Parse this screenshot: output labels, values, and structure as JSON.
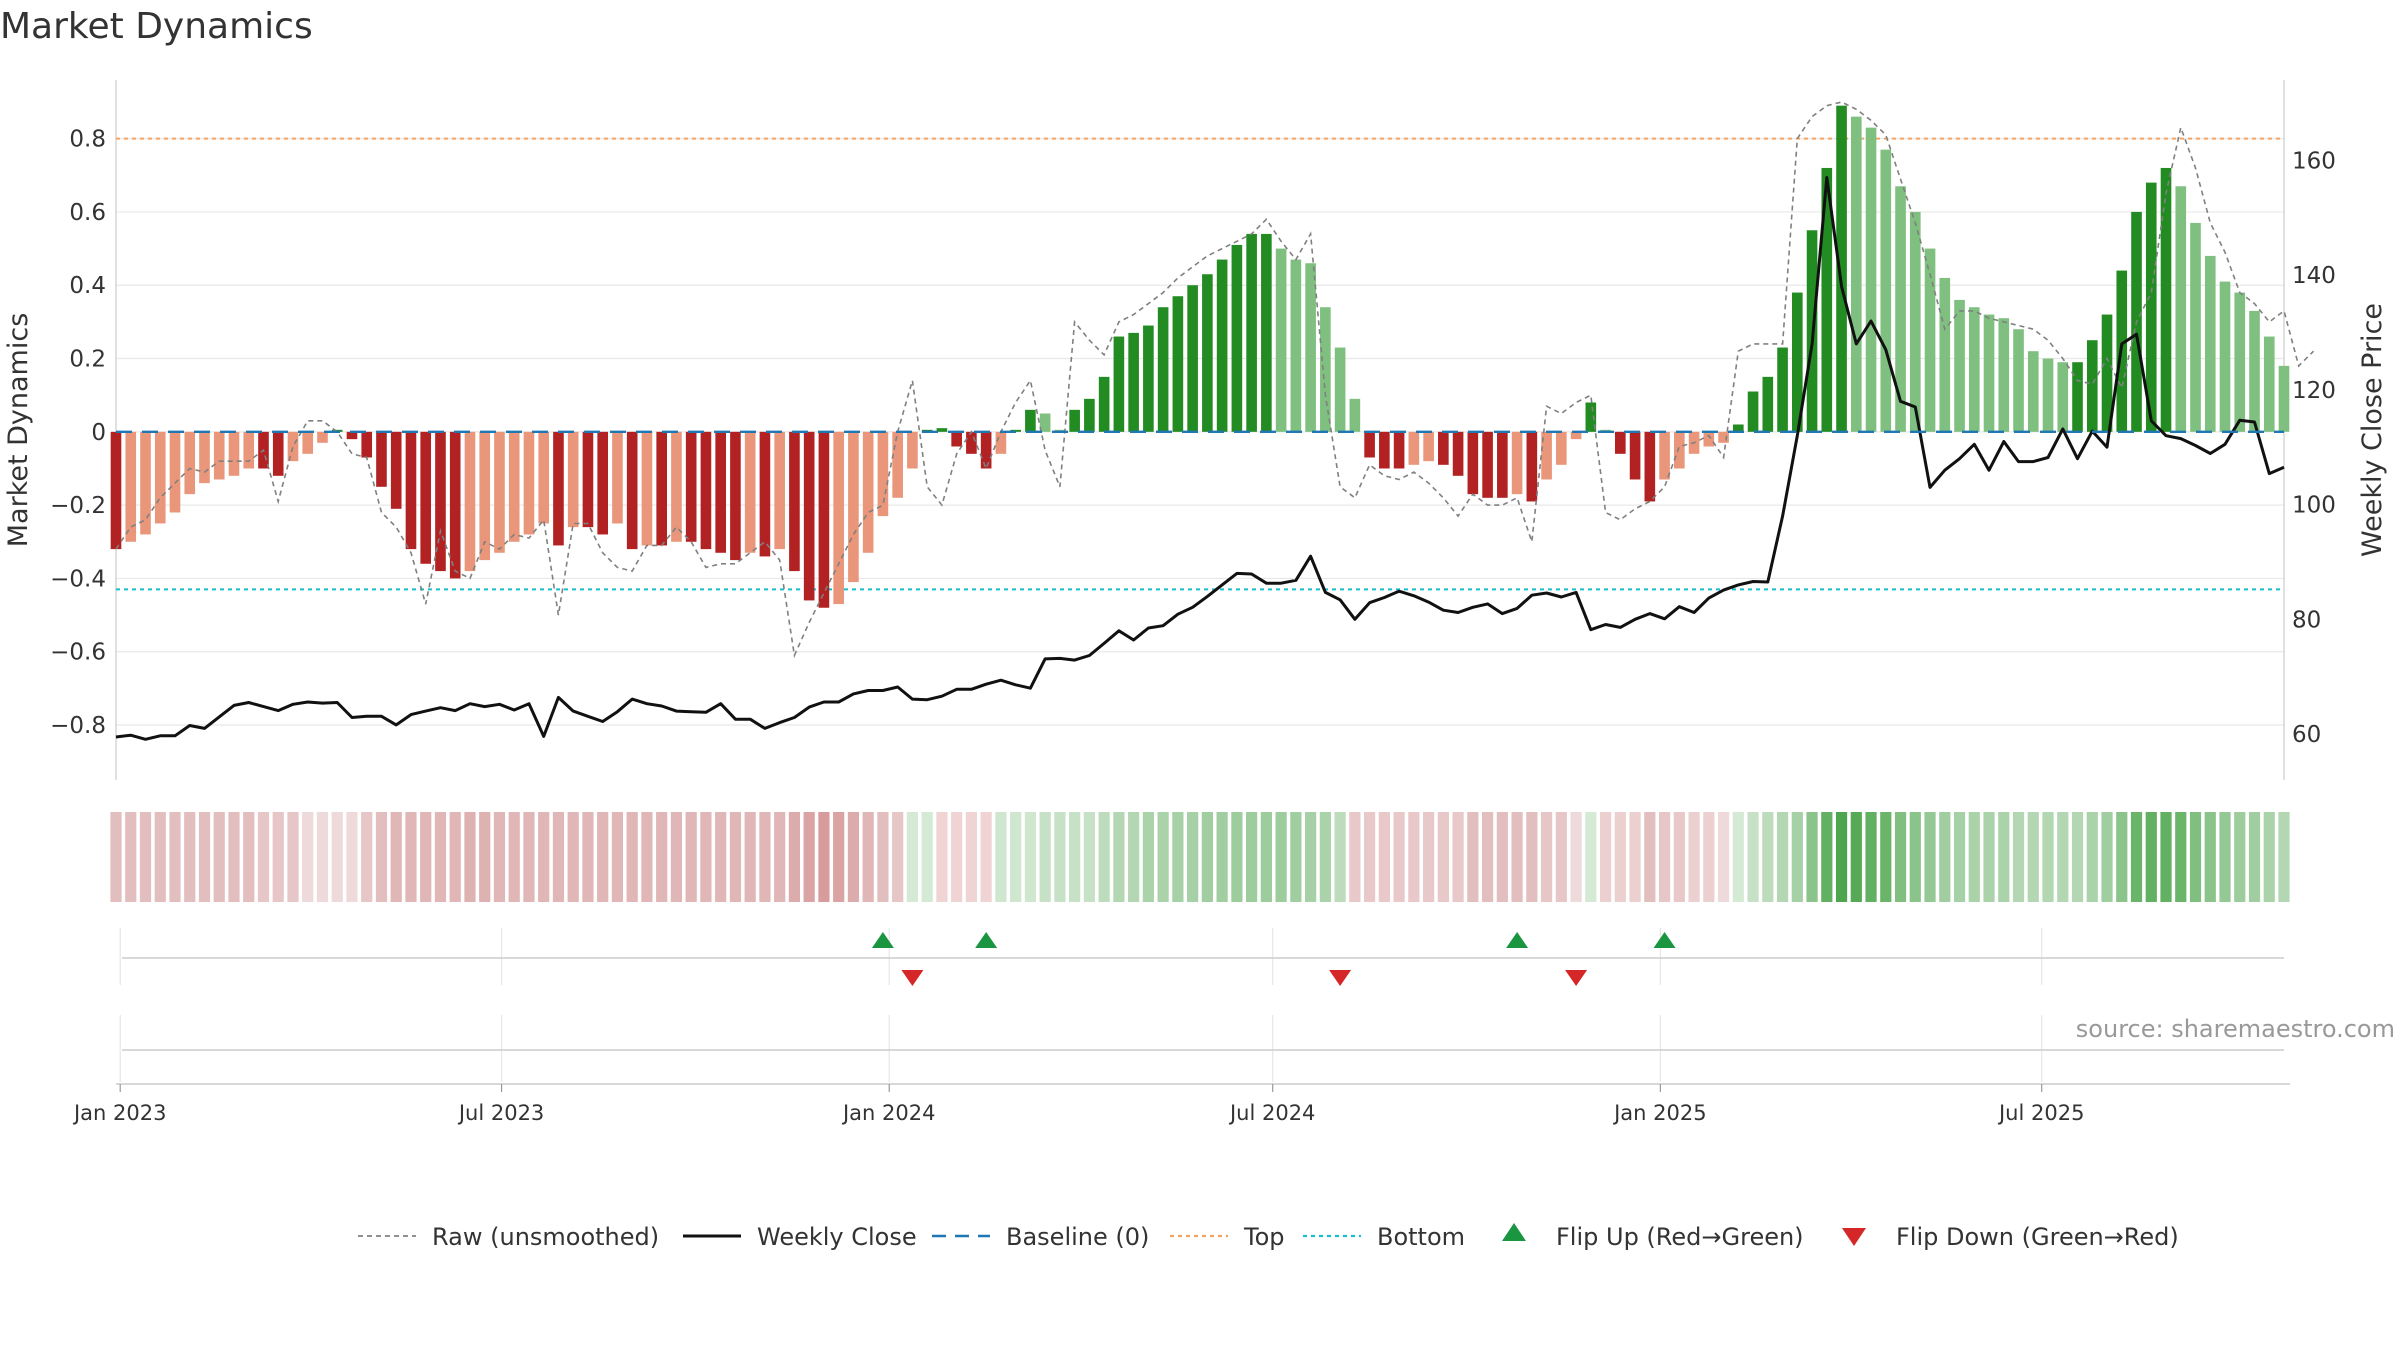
{
  "chart_data": {
    "type": "bar",
    "title": "Market Dynamics",
    "ylabel": "Market Dynamics",
    "y2label": "Weekly Close Price",
    "ylim": [
      -0.95,
      0.96
    ],
    "y2lim": [
      52,
      174
    ],
    "yticks": [
      -0.8,
      -0.6,
      -0.4,
      -0.2,
      0,
      0.2,
      0.4,
      0.6,
      0.8
    ],
    "ytick_labels": [
      "−0.8",
      "−0.6",
      "−0.4",
      "−0.2",
      "0",
      "0.2",
      "0.4",
      "0.6",
      "0.8"
    ],
    "y2ticks": [
      60,
      80,
      100,
      120,
      140,
      160
    ],
    "y2tick_labels": [
      "60",
      "80",
      "100",
      "120",
      "140",
      "160"
    ],
    "x_range": [
      "2022-12-30",
      "2025-10-24"
    ],
    "x_ticks": [
      "2023-01-01",
      "2023-07-01",
      "2024-01-01",
      "2024-07-01",
      "2025-01-01",
      "2025-07-01"
    ],
    "x_tick_labels": [
      "Jan 2023",
      "Jul 2023",
      "Jan 2024",
      "Jul 2024",
      "Jan 2025",
      "Jul 2025"
    ],
    "top_level": 0.8,
    "bottom_level": -0.43,
    "baseline": 0,
    "start_week": "2022-12-30",
    "week_days": 7,
    "smoothed": [
      -0.32,
      -0.3,
      -0.28,
      -0.25,
      -0.22,
      -0.17,
      -0.14,
      -0.13,
      -0.12,
      -0.1,
      -0.1,
      -0.12,
      -0.08,
      -0.06,
      -0.03,
      0.0,
      -0.02,
      -0.07,
      -0.15,
      -0.21,
      -0.32,
      -0.36,
      -0.38,
      -0.4,
      -0.38,
      -0.35,
      -0.33,
      -0.3,
      -0.28,
      -0.25,
      -0.31,
      -0.26,
      -0.26,
      -0.28,
      -0.25,
      -0.32,
      -0.31,
      -0.31,
      -0.3,
      -0.3,
      -0.32,
      -0.33,
      -0.35,
      -0.33,
      -0.34,
      -0.32,
      -0.38,
      -0.46,
      -0.48,
      -0.47,
      -0.41,
      -0.33,
      -0.23,
      -0.18,
      -0.1,
      0.0,
      0.01,
      -0.04,
      -0.06,
      -0.1,
      -0.06,
      0.0,
      0.06,
      0.05,
      0.0,
      0.06,
      0.09,
      0.15,
      0.26,
      0.27,
      0.29,
      0.34,
      0.37,
      0.4,
      0.43,
      0.47,
      0.51,
      0.54,
      0.54,
      0.5,
      0.47,
      0.46,
      0.34,
      0.23,
      0.09,
      -0.07,
      -0.1,
      -0.1,
      -0.09,
      -0.08,
      -0.09,
      -0.12,
      -0.17,
      -0.18,
      -0.18,
      -0.17,
      -0.19,
      -0.13,
      -0.09,
      -0.02,
      0.08,
      0.0,
      -0.06,
      -0.13,
      -0.19,
      -0.13,
      -0.1,
      -0.06,
      -0.04,
      -0.03,
      0.02,
      0.11,
      0.15,
      0.23,
      0.38,
      0.55,
      0.72,
      0.89,
      0.86,
      0.83,
      0.77,
      0.67,
      0.6,
      0.5,
      0.42,
      0.36,
      0.34,
      0.32,
      0.31,
      0.28,
      0.22,
      0.2,
      0.19,
      0.19,
      0.25,
      0.32,
      0.44,
      0.6,
      0.68,
      0.72,
      0.67,
      0.57,
      0.48,
      0.41,
      0.38,
      0.33,
      0.26,
      0.18
    ],
    "raw": [
      -0.32,
      -0.26,
      -0.24,
      -0.18,
      -0.14,
      -0.1,
      -0.11,
      -0.08,
      -0.08,
      -0.08,
      -0.05,
      -0.19,
      -0.04,
      0.03,
      0.03,
      0.0,
      -0.06,
      -0.07,
      -0.22,
      -0.26,
      -0.33,
      -0.47,
      -0.27,
      -0.38,
      -0.4,
      -0.3,
      -0.32,
      -0.28,
      -0.29,
      -0.24,
      -0.5,
      -0.25,
      -0.25,
      -0.33,
      -0.37,
      -0.38,
      -0.31,
      -0.31,
      -0.26,
      -0.3,
      -0.37,
      -0.36,
      -0.36,
      -0.33,
      -0.3,
      -0.35,
      -0.61,
      -0.52,
      -0.44,
      -0.36,
      -0.28,
      -0.22,
      -0.2,
      0.0,
      0.14,
      -0.15,
      -0.2,
      -0.06,
      0.0,
      -0.1,
      0.0,
      0.08,
      0.14,
      -0.05,
      -0.15,
      0.3,
      0.25,
      0.21,
      0.3,
      0.32,
      0.35,
      0.38,
      0.42,
      0.45,
      0.48,
      0.5,
      0.52,
      0.54,
      0.58,
      0.52,
      0.47,
      0.54,
      0.1,
      -0.15,
      -0.18,
      -0.09,
      -0.12,
      -0.13,
      -0.11,
      -0.14,
      -0.18,
      -0.23,
      -0.17,
      -0.2,
      -0.2,
      -0.18,
      -0.3,
      0.07,
      0.05,
      0.08,
      0.1,
      -0.22,
      -0.24,
      -0.21,
      -0.19,
      -0.15,
      -0.04,
      -0.03,
      -0.01,
      -0.07,
      0.22,
      0.24,
      0.24,
      0.24,
      0.8,
      0.86,
      0.89,
      0.9,
      0.88,
      0.85,
      0.81,
      0.69,
      0.57,
      0.43,
      0.28,
      0.33,
      0.33,
      0.31,
      0.3,
      0.29,
      0.28,
      0.25,
      0.2,
      0.14,
      0.13,
      0.2,
      0.12,
      0.3,
      0.38,
      0.65,
      0.83,
      0.72,
      0.57,
      0.49,
      0.38,
      0.35,
      0.3,
      0.33,
      0.18,
      0.22
    ],
    "close": [
      59.5,
      59.8,
      59.1,
      59.7,
      59.7,
      61.5,
      61.0,
      63.0,
      65.0,
      65.5,
      64.8,
      64.1,
      65.2,
      65.6,
      65.4,
      65.5,
      62.9,
      63.1,
      63.1,
      61.6,
      63.4,
      64.0,
      64.6,
      64.1,
      65.3,
      64.8,
      65.2,
      64.2,
      65.3,
      59.6,
      66.4,
      64.0,
      63.1,
      62.2,
      63.9,
      66.1,
      65.3,
      64.9,
      64.0,
      63.9,
      63.8,
      65.3,
      62.6,
      62.6,
      61.0,
      62.0,
      62.9,
      64.7,
      65.6,
      65.6,
      67.0,
      67.6,
      67.6,
      68.2,
      66.1,
      66.0,
      66.6,
      67.8,
      67.8,
      68.7,
      69.4,
      68.6,
      68.0,
      73.1,
      73.2,
      72.9,
      73.7,
      75.8,
      78.0,
      76.4,
      78.5,
      78.9,
      80.9,
      82.1,
      84.0,
      86.0,
      88.0,
      87.9,
      86.3,
      86.3,
      86.8,
      91.0,
      84.7,
      83.4,
      80.0,
      82.9,
      83.8,
      84.9,
      84.1,
      83.0,
      81.6,
      81.2,
      82.1,
      82.7,
      81.0,
      81.9,
      84.2,
      84.6,
      83.9,
      84.7,
      78.2,
      79.1,
      78.6,
      80.0,
      81.0,
      80.1,
      82.2,
      81.2,
      83.7,
      85.1,
      86.0,
      86.6,
      86.5,
      98.0,
      112.0,
      128.0,
      157.0,
      138.0,
      128.0,
      132.0,
      127.0,
      118.0,
      117.0,
      103.0,
      106.0,
      108.0,
      110.5,
      106.0,
      111.0,
      107.5,
      107.5,
      108.2,
      113.2,
      108.0,
      112.8,
      110.0,
      128.0,
      129.7,
      114.6,
      112.0,
      111.5,
      110.3,
      108.9,
      110.5,
      114.7,
      114.4,
      105.4,
      106.5
    ],
    "strip_colors": [
      "#e3bebe",
      "#e3bebe",
      "#e3bebe",
      "#e3bebe",
      "#e3bebe",
      "#e3bebe",
      "#e3bebe",
      "#e3bebe",
      "#e3bebe",
      "#e3bebe",
      "#e6c6c6",
      "#e6c6c6",
      "#e6c6c6",
      "#eedada",
      "#eedada",
      "#eedada",
      "#eedada",
      "#e6c6c6",
      "#e3bebe",
      "#e0b6b6",
      "#e0b6b6",
      "#e0b6b6",
      "#e0b6b6",
      "#e0b6b6",
      "#dfb2b2",
      "#dfb2b2",
      "#e0b6b6",
      "#e0b6b6",
      "#e0b6b6",
      "#e0b6b6",
      "#e0b6b6",
      "#e0b6b6",
      "#e0b6b6",
      "#e0b6b6",
      "#e0b6b6",
      "#e0b6b6",
      "#e0b6b6",
      "#e0b6b6",
      "#e0b6b6",
      "#e0b6b6",
      "#e0b6b6",
      "#e0b6b6",
      "#e0b6b6",
      "#e0b6b6",
      "#e0b6b6",
      "#e0b6b6",
      "#dcacac",
      "#dba4a4",
      "#d99c9c",
      "#dba4a4",
      "#dcacac",
      "#e0b6b6",
      "#e3bebe",
      "#e6c6c6",
      "#d5ead5",
      "#d5ead5",
      "#f0d4d4",
      "#f0d4d4",
      "#f0d4d4",
      "#f0d4d4",
      "#cfe6cf",
      "#cfe6cf",
      "#cfe6cf",
      "#c6e1c6",
      "#c6e1c6",
      "#c6e1c6",
      "#c6e1c6",
      "#bcdcbc",
      "#b3d7b3",
      "#b3d7b3",
      "#aad3aa",
      "#aad3aa",
      "#a6d0a6",
      "#a6d0a6",
      "#a1cea1",
      "#a1cea1",
      "#9dcc9d",
      "#9dcc9d",
      "#9dcc9d",
      "#9dcc9d",
      "#a1cea1",
      "#a6d0a6",
      "#aad3aa",
      "#bcdcbc",
      "#e8c8c8",
      "#e8c8c8",
      "#e8c8c8",
      "#e8c8c8",
      "#e8c8c8",
      "#e8c8c8",
      "#e8c8c8",
      "#e8c8c8",
      "#e3bebe",
      "#e3bebe",
      "#e3bebe",
      "#e3bebe",
      "#e3bebe",
      "#e6c6c6",
      "#e6c6c6",
      "#eedada",
      "#d5ead5",
      "#ecd0d0",
      "#ecd0d0",
      "#ecd0d0",
      "#e3bebe",
      "#e6c6c6",
      "#e8c8c8",
      "#ecd0d0",
      "#ecd0d0",
      "#eedada",
      "#d5ead5",
      "#c6e1c6",
      "#bcdcbc",
      "#b3d7b3",
      "#a6d0a6",
      "#8ac48a",
      "#62b062",
      "#4da64d",
      "#56aa56",
      "#62b062",
      "#6bb56b",
      "#80bf80",
      "#8ac48a",
      "#94c894",
      "#a1cea1",
      "#a6d0a6",
      "#aad3aa",
      "#aad3aa",
      "#aad3aa",
      "#b3d7b3",
      "#b3d7b3",
      "#b3d7b3",
      "#b3d7b3",
      "#b3d7b3",
      "#aad3aa",
      "#a1cea1",
      "#8ac48a",
      "#6bb56b",
      "#62b062",
      "#62b062",
      "#6bb56b",
      "#80bf80",
      "#8ac48a",
      "#94c894",
      "#9dcc9d",
      "#a1cea1",
      "#aad3aa",
      "#b3d7b3"
    ],
    "flips_up": [
      "2023-12-29",
      "2024-02-16",
      "2024-10-25",
      "2025-01-03"
    ],
    "flips_down": [
      "2024-01-12",
      "2024-08-02",
      "2024-11-22"
    ],
    "source": "source: sharemaestro.com",
    "legend": [
      "Raw (unsmoothed)",
      "Weekly Close",
      "Baseline (0)",
      "Top",
      "Bottom",
      "Flip Up (Red→Green)",
      "Flip Down (Green→Red)"
    ],
    "colors": {
      "red_dark": "#b22222",
      "red_light": "#e9967a",
      "green_dark": "#228b22",
      "green_light": "#7fbf7f",
      "raw": "#808080",
      "close": "#111111",
      "baseline": "#1f77b4",
      "top": "#f4a460",
      "bottom": "#17becf",
      "flip_up": "#1a9641",
      "flip_down": "#d62728",
      "grid": "#e8e8e8"
    }
  }
}
